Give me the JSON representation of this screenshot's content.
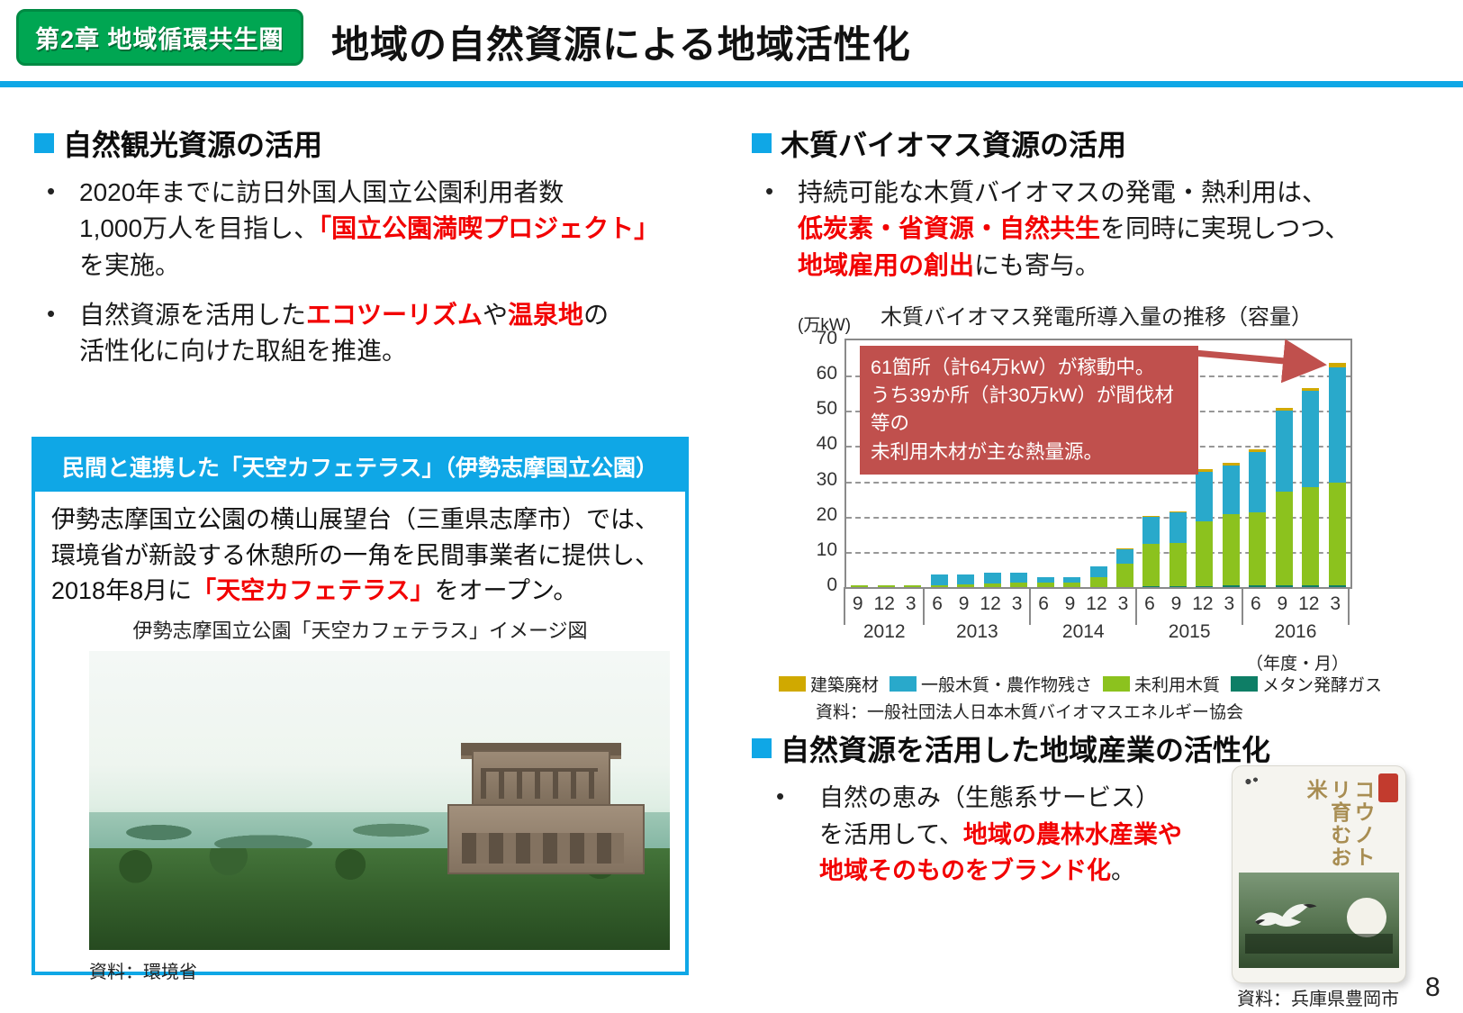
{
  "ui": {
    "bullet": "•"
  },
  "colors": {
    "accent_cyan": "#0FA7E6",
    "badge_green": "#00A652",
    "red_text": "#F20000",
    "annotation_red": "#C0504D"
  },
  "header": {
    "badge": "第2章 地域循環共生圏",
    "title": "地域の自然資源による地域活性化"
  },
  "left": {
    "heading1": "自然観光資源の活用",
    "b1": {
      "l1": "2020年までに訪日外国人国立公園利用者数",
      "l2a": "1,000万人を目指し、",
      "l2red": "「国立公園満喫プロジェクト」",
      "l3": "を実施。"
    },
    "b2": {
      "l1a": "自然資源を活用した",
      "l1red1": "エコツーリズム",
      "l1b": "や",
      "l1red2": "温泉地",
      "l1c": "の",
      "l2": "活性化に向けた取組を推進。"
    },
    "box": {
      "title": "民間と連携した「天空カフェテラス」（伊勢志摩国立公園）",
      "body_l1": "伊勢志摩国立公園の横山展望台（三重県志摩市）では、",
      "body_l2": "環境省が新設する休憩所の一角を民間事業者に提供し、",
      "body_l3a": "2018年8月に",
      "body_l3red": "「天空カフェテラス」",
      "body_l3b": "をオープン。",
      "caption": "伊勢志摩国立公園「天空カフェテラス」イメージ図",
      "source": "資料：環境省"
    }
  },
  "right": {
    "heading2": "木質バイオマス資源の活用",
    "b": {
      "l1": "持続可能な木質バイオマスの発電・熱利用は、",
      "l2red": "低炭素・省資源・自然共生",
      "l2b": "を同時に実現しつつ、",
      "l3red": "地域雇用の創出",
      "l3b": "にも寄与。"
    },
    "heading3": "自然資源を活用した地域産業の活性化",
    "b3": {
      "l1": "自然の恵み（生態系サービス）",
      "l2a": "を活用して、",
      "l2red": "地域の農林水産業や",
      "l3red": "地域そのものをブランド化",
      "l3b": "。"
    },
    "rice": {
      "label": "コウノトリ育むお米",
      "source": "資料：兵庫県豊岡市"
    }
  },
  "page_number": "8",
  "chart_data": {
    "type": "stacked-bar",
    "title": "木質バイオマス発電所導入量の推移（容量）",
    "unit": "(万kW)",
    "ylabel": "万kW",
    "ylim": [
      0,
      70
    ],
    "ytick_step": 10,
    "grid": true,
    "legend_position": "bottom",
    "axis_note": "（年度・月）",
    "x_labels": [
      "9",
      "12",
      "3",
      "6",
      "9",
      "12",
      "3",
      "6",
      "9",
      "12",
      "3",
      "6",
      "9",
      "12",
      "3",
      "6",
      "9",
      "12",
      "3"
    ],
    "year_groups": [
      {
        "label": "2012",
        "count": 3
      },
      {
        "label": "2013",
        "count": 4
      },
      {
        "label": "2014",
        "count": 4
      },
      {
        "label": "2015",
        "count": 4
      },
      {
        "label": "2016",
        "count": 4
      }
    ],
    "series": [
      {
        "name": "メタン発酵ガス",
        "color": "#0e7e66",
        "values": [
          0,
          0,
          0,
          0,
          0,
          0,
          0,
          0,
          0,
          0,
          0,
          0.2,
          0.2,
          0.3,
          0.4,
          0.4,
          0.5,
          0.6,
          0.6
        ]
      },
      {
        "name": "未利用木質",
        "color": "#8cc21e",
        "values": [
          0.5,
          0.5,
          0.6,
          0.6,
          0.7,
          1.1,
          1.2,
          1.2,
          1.3,
          2.9,
          6.7,
          12.1,
          12.2,
          18.3,
          20.3,
          20.8,
          26.6,
          27.8,
          29.1
        ]
      },
      {
        "name": "一般木質・農作物残さ",
        "color": "#29a9cb",
        "values": [
          0,
          0,
          0,
          2.9,
          2.8,
          3.1,
          3.0,
          1.6,
          1.6,
          3.0,
          4.0,
          7.7,
          8.9,
          14.2,
          13.8,
          17.1,
          23.0,
          27.3,
          32.6
        ]
      },
      {
        "name": "建築廃材",
        "color": "#d0a900",
        "values": [
          0,
          0,
          0,
          0,
          0,
          0,
          0,
          0,
          0,
          0,
          0.4,
          0.3,
          0.2,
          0.7,
          0.7,
          0.9,
          0.8,
          0.8,
          1.2
        ]
      }
    ],
    "annotation": {
      "lines": [
        "61箇所（計64万kW）が稼動中。",
        "うち39か所（計30万kW）が間伐材等の",
        "未利用木材が主な熱量源。"
      ]
    },
    "source": "資料：一般社団法人日本木質バイオマスエネルギー協会"
  }
}
